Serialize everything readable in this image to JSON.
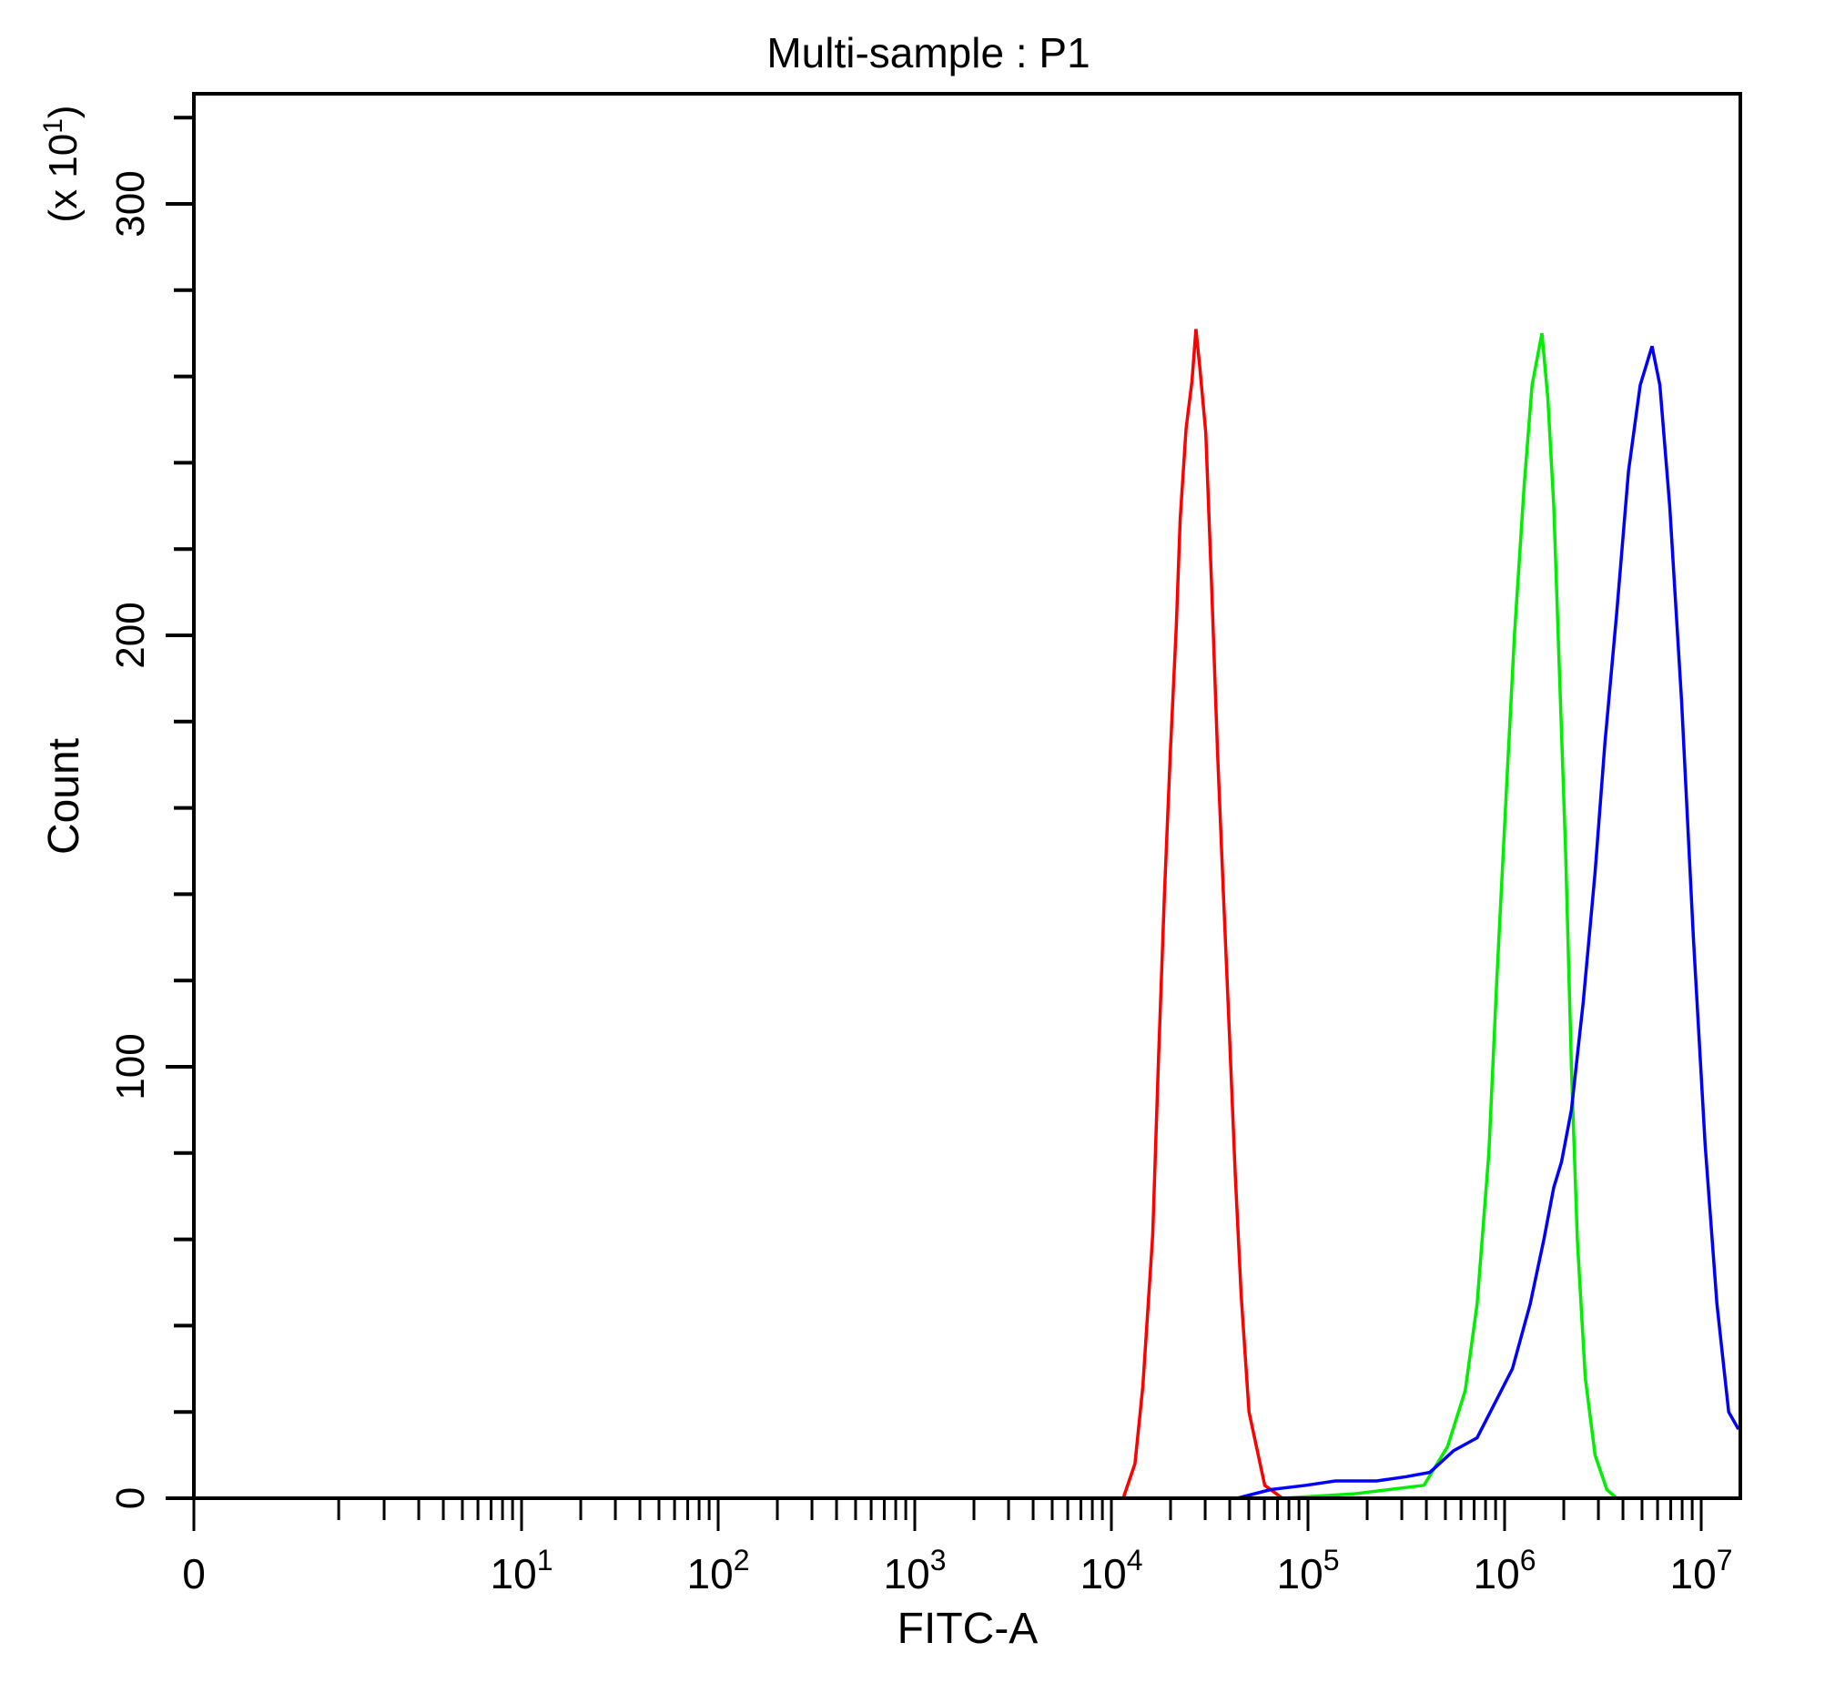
{
  "chart_data": {
    "type": "line",
    "title": "Multi-sample : P1",
    "xlabel": "FITC-A",
    "ylabel": "Count",
    "y_multiplier_label": "(x 10",
    "y_multiplier_exp": "1",
    "y_multiplier_close": ")",
    "x_scale": "log (log10 values stored)",
    "xlim_log10": [
      -1.68,
      7.2
    ],
    "ylim": [
      0,
      325
    ],
    "grid": false,
    "legend": "none",
    "x_tick_labels": [
      {
        "base": "0",
        "exp": "",
        "log10": null
      },
      {
        "base": "10",
        "exp": "1",
        "log10": 1
      },
      {
        "base": "10",
        "exp": "2",
        "log10": 2
      },
      {
        "base": "10",
        "exp": "3",
        "log10": 3
      },
      {
        "base": "10",
        "exp": "4",
        "log10": 4
      },
      {
        "base": "10",
        "exp": "5",
        "log10": 5
      },
      {
        "base": "10",
        "exp": "6",
        "log10": 6
      },
      {
        "base": "10",
        "exp": "7",
        "log10": 7
      }
    ],
    "y_ticks": [
      {
        "label": "0",
        "value": 0
      },
      {
        "label": "100",
        "value": 100
      },
      {
        "label": "200",
        "value": 200
      },
      {
        "label": "300",
        "value": 300
      }
    ],
    "series": [
      {
        "name": "red",
        "color": "#ff0000",
        "points": [
          [
            4.06,
            0
          ],
          [
            4.12,
            8
          ],
          [
            4.16,
            26
          ],
          [
            4.21,
            61
          ],
          [
            4.24,
            102
          ],
          [
            4.27,
            140
          ],
          [
            4.3,
            173
          ],
          [
            4.33,
            202
          ],
          [
            4.35,
            227
          ],
          [
            4.38,
            248
          ],
          [
            4.41,
            259
          ],
          [
            4.43,
            271
          ],
          [
            4.45,
            262
          ],
          [
            4.48,
            247
          ],
          [
            4.51,
            211
          ],
          [
            4.54,
            173
          ],
          [
            4.57,
            140
          ],
          [
            4.6,
            108
          ],
          [
            4.63,
            75
          ],
          [
            4.66,
            47
          ],
          [
            4.7,
            20
          ],
          [
            4.78,
            3
          ],
          [
            4.87,
            0
          ]
        ]
      },
      {
        "name": "green",
        "color": "#00ee00",
        "points": [
          [
            4.87,
            0
          ],
          [
            5.23,
            1
          ],
          [
            5.59,
            3
          ],
          [
            5.71,
            12
          ],
          [
            5.8,
            25
          ],
          [
            5.86,
            45
          ],
          [
            5.92,
            80
          ],
          [
            5.96,
            120
          ],
          [
            6.01,
            165
          ],
          [
            6.05,
            200
          ],
          [
            6.1,
            235
          ],
          [
            6.14,
            258
          ],
          [
            6.19,
            270
          ],
          [
            6.22,
            255
          ],
          [
            6.25,
            230
          ],
          [
            6.28,
            190
          ],
          [
            6.31,
            150
          ],
          [
            6.34,
            100
          ],
          [
            6.37,
            60
          ],
          [
            6.41,
            28
          ],
          [
            6.46,
            10
          ],
          [
            6.52,
            2
          ],
          [
            6.57,
            0
          ]
        ]
      },
      {
        "name": "blue",
        "color": "#0000ff",
        "points": [
          [
            4.64,
            0
          ],
          [
            4.81,
            2
          ],
          [
            4.99,
            3
          ],
          [
            5.14,
            4
          ],
          [
            5.35,
            4
          ],
          [
            5.5,
            5
          ],
          [
            5.62,
            6
          ],
          [
            5.74,
            11
          ],
          [
            5.86,
            14
          ],
          [
            5.95,
            22
          ],
          [
            6.04,
            30
          ],
          [
            6.13,
            45
          ],
          [
            6.2,
            60
          ],
          [
            6.25,
            72
          ],
          [
            6.29,
            78
          ],
          [
            6.34,
            90
          ],
          [
            6.4,
            115
          ],
          [
            6.46,
            145
          ],
          [
            6.51,
            175
          ],
          [
            6.57,
            205
          ],
          [
            6.63,
            238
          ],
          [
            6.69,
            258
          ],
          [
            6.75,
            267
          ],
          [
            6.79,
            258
          ],
          [
            6.84,
            230
          ],
          [
            6.9,
            185
          ],
          [
            6.96,
            130
          ],
          [
            7.02,
            82
          ],
          [
            7.08,
            45
          ],
          [
            7.14,
            20
          ],
          [
            7.19,
            16
          ]
        ]
      }
    ]
  }
}
